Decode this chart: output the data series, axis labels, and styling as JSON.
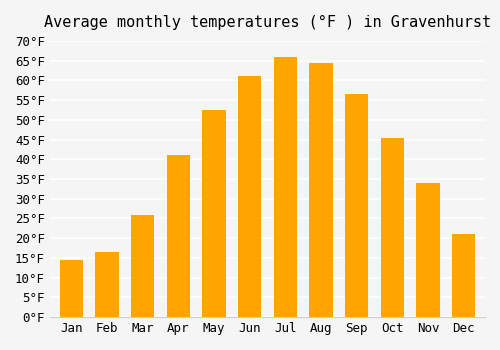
{
  "title": "Average monthly temperatures (°F ) in Gravenhurst",
  "months": [
    "Jan",
    "Feb",
    "Mar",
    "Apr",
    "May",
    "Jun",
    "Jul",
    "Aug",
    "Sep",
    "Oct",
    "Nov",
    "Dec"
  ],
  "values": [
    14.5,
    16.5,
    26.0,
    41.0,
    52.5,
    61.0,
    66.0,
    64.5,
    56.5,
    45.5,
    34.0,
    21.0
  ],
  "bar_color_top": "#FFA500",
  "bar_color_bottom": "#FFD070",
  "ylim": [
    0,
    70
  ],
  "yticks": [
    0,
    5,
    10,
    15,
    20,
    25,
    30,
    35,
    40,
    45,
    50,
    55,
    60,
    65,
    70
  ],
  "ytick_labels": [
    "0°F",
    "5°F",
    "10°F",
    "15°F",
    "20°F",
    "25°F",
    "30°F",
    "35°F",
    "40°F",
    "45°F",
    "50°F",
    "55°F",
    "60°F",
    "65°F",
    "70°F"
  ],
  "background_color": "#f5f5f5",
  "grid_color": "#ffffff",
  "title_fontsize": 11,
  "tick_fontsize": 9
}
